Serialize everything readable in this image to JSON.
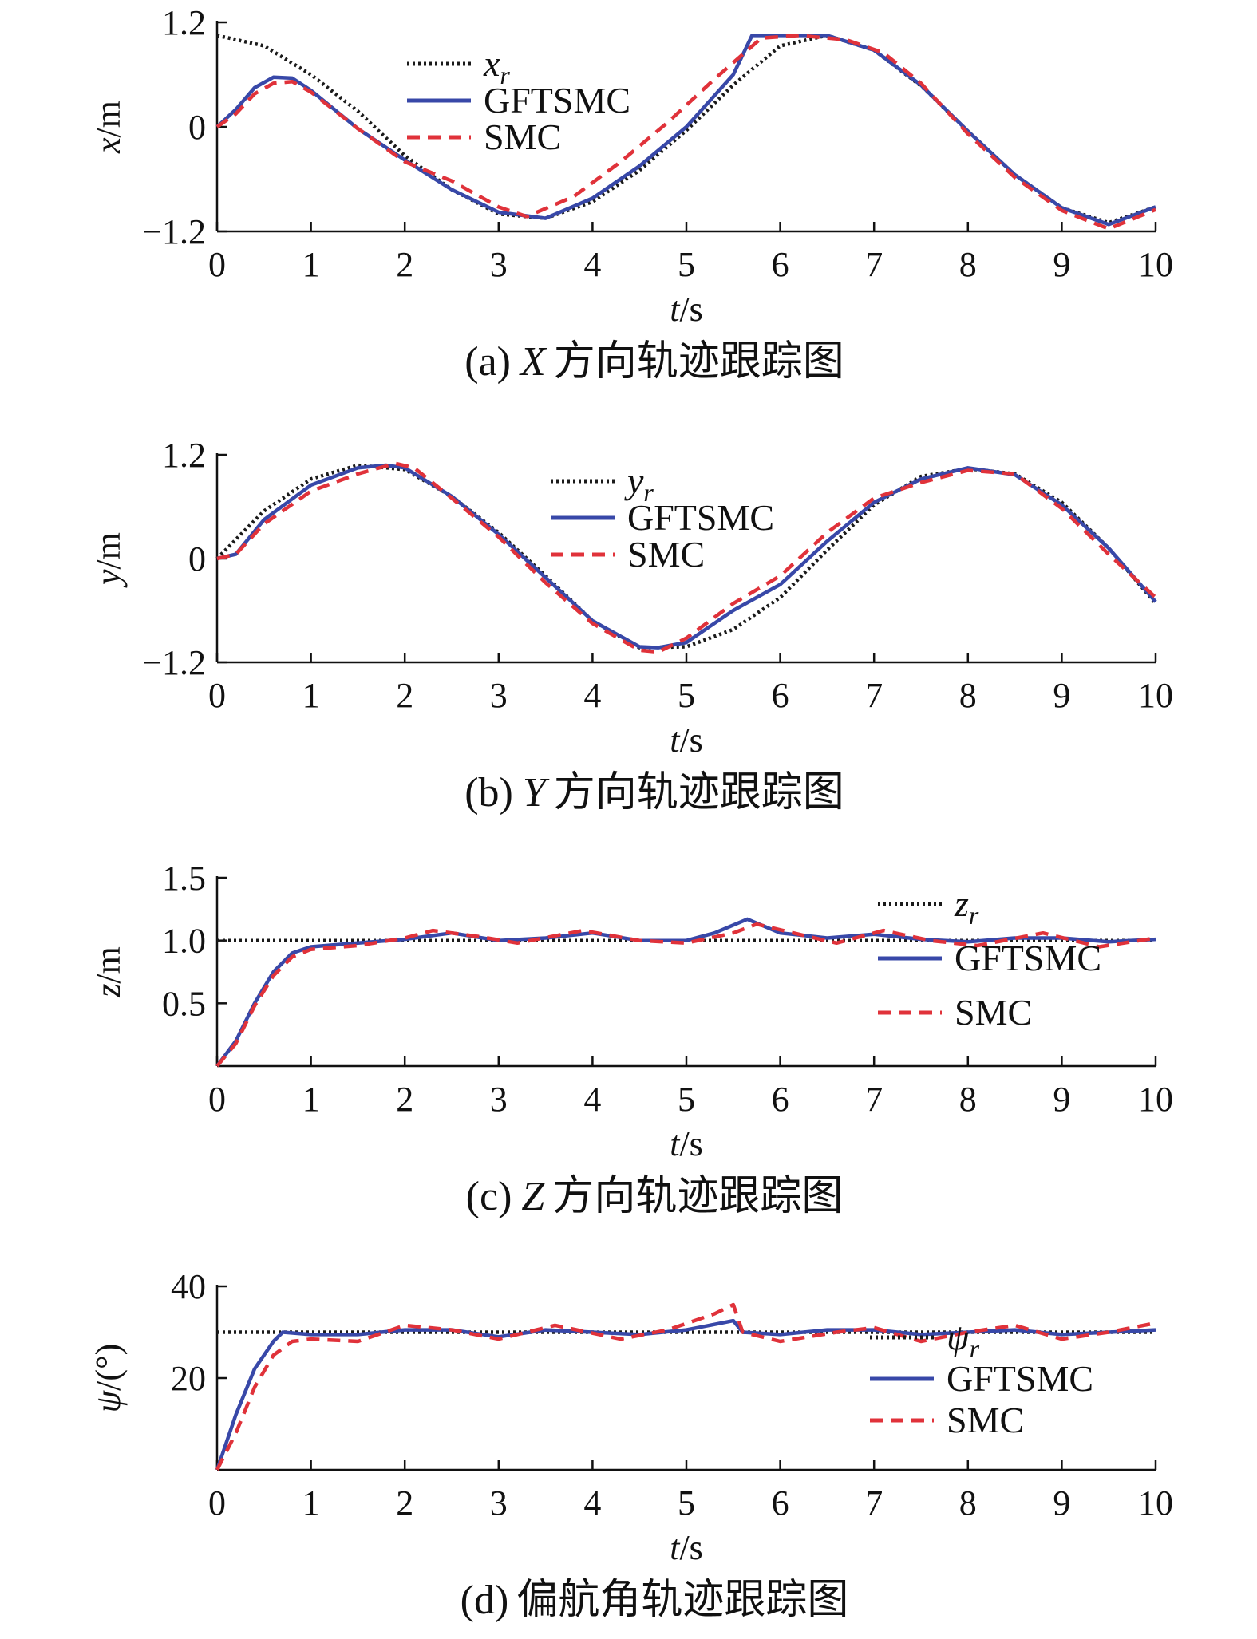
{
  "colors": {
    "reference": "#1a1a1a",
    "gftsmc": "#3848a8",
    "smc": "#e0323a"
  },
  "chart_data": [
    {
      "type": "line",
      "caption": "(a) X 方向轨迹跟踪图",
      "caption_prefix": "(a)",
      "caption_var": "X",
      "caption_text": "方向轨迹跟踪图",
      "xlabel": "t/s",
      "xlabel_var": "t",
      "xlabel_unit": "/s",
      "ylabel": "x/m",
      "ylabel_var": "x",
      "ylabel_unit": "/m",
      "xlim": [
        0,
        10
      ],
      "ylim": [
        -1.2,
        1.2
      ],
      "xticks": [
        0,
        1,
        2,
        3,
        4,
        5,
        6,
        7,
        8,
        9,
        10
      ],
      "xtick_labels": [
        "0",
        "1",
        "2",
        "3",
        "4",
        "5",
        "6",
        "7",
        "8",
        "9",
        "10"
      ],
      "yticks": [
        -1.2,
        0,
        1.2
      ],
      "ytick_labels": [
        "−1.2",
        "0",
        "1.2"
      ],
      "legend": {
        "position": "top-left",
        "entries": [
          {
            "label": "x",
            "subscript": "r",
            "style": "dotted",
            "series": "reference"
          },
          {
            "label": "GFTSMC",
            "subscript": "",
            "style": "solid",
            "series": "gftsmc"
          },
          {
            "label": "SMC",
            "subscript": "",
            "style": "dashed",
            "series": "smc"
          }
        ]
      },
      "series": [
        {
          "name": "x_r",
          "key": "reference",
          "x": [
            0,
            0.5,
            1,
            1.5,
            2,
            2.5,
            3,
            3.5,
            4,
            4.5,
            5,
            5.5,
            6,
            6.5,
            7,
            7.5,
            8,
            8.5,
            9,
            9.5,
            10
          ],
          "y": [
            1.05,
            0.93,
            0.6,
            0.18,
            -0.33,
            -0.72,
            -1.0,
            -1.05,
            -0.86,
            -0.5,
            -0.04,
            0.48,
            0.93,
            1.05,
            0.88,
            0.47,
            -0.05,
            -0.55,
            -0.93,
            -1.1,
            -0.92
          ]
        },
        {
          "name": "GFTSMC",
          "key": "gftsmc",
          "x": [
            0,
            0.2,
            0.4,
            0.6,
            0.8,
            1.0,
            1.5,
            2,
            2.5,
            3,
            3.5,
            4,
            4.5,
            5,
            5.5,
            5.7,
            6.0,
            6.5,
            7,
            7.5,
            8,
            8.5,
            9,
            9.5,
            10
          ],
          "y": [
            0,
            0.2,
            0.45,
            0.57,
            0.56,
            0.42,
            -0.02,
            -0.38,
            -0.72,
            -0.98,
            -1.05,
            -0.82,
            -0.45,
            0.0,
            0.6,
            1.05,
            1.05,
            1.05,
            0.88,
            0.48,
            -0.05,
            -0.55,
            -0.93,
            -1.12,
            -0.92
          ]
        },
        {
          "name": "SMC",
          "key": "smc",
          "x": [
            0,
            0.2,
            0.4,
            0.6,
            0.8,
            1.0,
            1.5,
            2,
            2.5,
            3,
            3.3,
            3.8,
            4.3,
            4.8,
            5.3,
            5.8,
            6.2,
            6.7,
            7.1,
            7.5,
            8,
            8.5,
            9,
            9.5,
            10
          ],
          "y": [
            0,
            0.15,
            0.38,
            0.5,
            0.52,
            0.4,
            -0.02,
            -0.4,
            -0.62,
            -0.92,
            -1.03,
            -0.8,
            -0.4,
            0.05,
            0.55,
            1.02,
            1.05,
            1.0,
            0.85,
            0.5,
            -0.08,
            -0.58,
            -0.96,
            -1.17,
            -0.95
          ]
        }
      ]
    },
    {
      "type": "line",
      "caption": "(b) Y 方向轨迹跟踪图",
      "caption_prefix": "(b)",
      "caption_var": "Y",
      "caption_text": "方向轨迹跟踪图",
      "xlabel": "t/s",
      "xlabel_var": "t",
      "xlabel_unit": "/s",
      "ylabel": "y/m",
      "ylabel_var": "y",
      "ylabel_unit": "/m",
      "xlim": [
        0,
        10
      ],
      "ylim": [
        -1.2,
        1.2
      ],
      "xticks": [
        0,
        1,
        2,
        3,
        4,
        5,
        6,
        7,
        8,
        9,
        10
      ],
      "xtick_labels": [
        "0",
        "1",
        "2",
        "3",
        "4",
        "5",
        "6",
        "7",
        "8",
        "9",
        "10"
      ],
      "yticks": [
        -1.2,
        0,
        1.2
      ],
      "ytick_labels": [
        "−1.2",
        "0",
        "1.2"
      ],
      "legend": {
        "position": "top-center",
        "entries": [
          {
            "label": "y",
            "subscript": "r",
            "style": "dotted",
            "series": "reference"
          },
          {
            "label": "GFTSMC",
            "subscript": "",
            "style": "solid",
            "series": "gftsmc"
          },
          {
            "label": "SMC",
            "subscript": "",
            "style": "dashed",
            "series": "smc"
          }
        ]
      },
      "series": [
        {
          "name": "y_r",
          "key": "reference",
          "x": [
            0,
            0.5,
            1,
            1.5,
            2,
            2.5,
            3,
            3.5,
            4,
            4.5,
            5,
            5.5,
            6,
            6.5,
            7,
            7.5,
            8,
            8.5,
            9,
            9.5,
            10
          ],
          "y": [
            0,
            0.55,
            0.92,
            1.08,
            1.03,
            0.72,
            0.3,
            -0.2,
            -0.72,
            -1.03,
            -1.02,
            -0.82,
            -0.45,
            0.1,
            0.62,
            0.95,
            1.04,
            0.98,
            0.65,
            0.12,
            -0.52
          ]
        },
        {
          "name": "GFTSMC",
          "key": "gftsmc",
          "x": [
            0,
            0.2,
            0.5,
            1,
            1.5,
            1.8,
            2,
            2.5,
            3,
            3.5,
            4,
            4.5,
            4.7,
            5,
            5.5,
            6,
            6.5,
            7,
            7.5,
            8,
            8.5,
            9,
            9.5,
            10
          ],
          "y": [
            0,
            0.05,
            0.45,
            0.85,
            1.05,
            1.08,
            1.05,
            0.72,
            0.28,
            -0.22,
            -0.72,
            -1.02,
            -1.03,
            -0.97,
            -0.6,
            -0.3,
            0.2,
            0.65,
            0.92,
            1.05,
            0.97,
            0.62,
            0.12,
            -0.5
          ]
        },
        {
          "name": "SMC",
          "key": "smc",
          "x": [
            0,
            0.2,
            0.5,
            1,
            1.5,
            1.9,
            2.1,
            2.5,
            3,
            3.5,
            4,
            4.5,
            4.7,
            5,
            5.5,
            6,
            6.5,
            7,
            7.5,
            8,
            8.5,
            9,
            9.5,
            10
          ],
          "y": [
            0,
            0.05,
            0.4,
            0.78,
            0.98,
            1.1,
            1.05,
            0.7,
            0.25,
            -0.28,
            -0.75,
            -1.06,
            -1.08,
            -0.92,
            -0.52,
            -0.2,
            0.3,
            0.7,
            0.88,
            1.02,
            0.98,
            0.58,
            0.05,
            -0.45
          ]
        }
      ]
    },
    {
      "type": "line",
      "caption": "(c) Z 方向轨迹跟踪图",
      "caption_prefix": "(c)",
      "caption_var": "Z",
      "caption_text": "方向轨迹跟踪图",
      "xlabel": "t/s",
      "xlabel_var": "t",
      "xlabel_unit": "/s",
      "ylabel": "z/m",
      "ylabel_var": "z",
      "ylabel_unit": "/m",
      "xlim": [
        0,
        10
      ],
      "ylim": [
        0,
        1.5
      ],
      "xticks": [
        0,
        1,
        2,
        3,
        4,
        5,
        6,
        7,
        8,
        9,
        10
      ],
      "xtick_labels": [
        "0",
        "1",
        "2",
        "3",
        "4",
        "5",
        "6",
        "7",
        "8",
        "9",
        "10"
      ],
      "yticks": [
        0.5,
        1.0,
        1.5
      ],
      "ytick_labels": [
        "0.5",
        "1.0",
        "1.5"
      ],
      "legend": {
        "position": "right",
        "entries": [
          {
            "label": "z",
            "subscript": "r",
            "style": "dotted",
            "series": "reference"
          },
          {
            "label": "GFTSMC",
            "subscript": "",
            "style": "solid",
            "series": "gftsmc"
          },
          {
            "label": "SMC",
            "subscript": "",
            "style": "dashed",
            "series": "smc"
          }
        ]
      },
      "series": [
        {
          "name": "z_r",
          "key": "reference",
          "x": [
            0,
            10
          ],
          "y": [
            1.0,
            1.0
          ]
        },
        {
          "name": "GFTSMC",
          "key": "gftsmc",
          "x": [
            0,
            0.2,
            0.4,
            0.6,
            0.8,
            1.0,
            1.5,
            2,
            2.5,
            3,
            3.5,
            4,
            4.5,
            5,
            5.3,
            5.65,
            6.0,
            6.5,
            7,
            7.5,
            8,
            8.5,
            9,
            9.5,
            10
          ],
          "y": [
            0,
            0.2,
            0.5,
            0.75,
            0.9,
            0.95,
            0.98,
            1.01,
            1.06,
            1.0,
            1.02,
            1.06,
            1.0,
            1.0,
            1.06,
            1.17,
            1.06,
            1.02,
            1.05,
            1.01,
            0.99,
            1.02,
            1.02,
            0.99,
            1.01
          ]
        },
        {
          "name": "SMC",
          "key": "smc",
          "x": [
            0,
            0.2,
            0.4,
            0.6,
            0.8,
            1.0,
            1.5,
            2,
            2.3,
            2.8,
            3.2,
            3.9,
            4.5,
            5,
            5.5,
            5.75,
            6.2,
            6.6,
            7.1,
            7.6,
            8.1,
            8.8,
            9.4,
            10
          ],
          "y": [
            0,
            0.18,
            0.48,
            0.72,
            0.87,
            0.93,
            0.96,
            1.02,
            1.08,
            1.03,
            0.98,
            1.08,
            1.0,
            0.98,
            1.06,
            1.13,
            1.05,
            0.98,
            1.08,
            1.0,
            0.96,
            1.06,
            0.95,
            1.02
          ]
        }
      ]
    },
    {
      "type": "line",
      "caption": "(d) 偏航角轨迹跟踪图",
      "caption_prefix": "(d)",
      "caption_var": "",
      "caption_text": "偏航角轨迹跟踪图",
      "xlabel": "t/s",
      "xlabel_var": "t",
      "xlabel_unit": "/s",
      "ylabel": "ψ/(°)",
      "ylabel_var": "ψ",
      "ylabel_unit": "/(°)",
      "xlim": [
        0,
        10
      ],
      "ylim": [
        0,
        40
      ],
      "xticks": [
        0,
        1,
        2,
        3,
        4,
        5,
        6,
        7,
        8,
        9,
        10
      ],
      "xtick_labels": [
        "0",
        "1",
        "2",
        "3",
        "4",
        "5",
        "6",
        "7",
        "8",
        "9",
        "10"
      ],
      "yticks": [
        20,
        40
      ],
      "ytick_labels": [
        "20",
        "40"
      ],
      "legend": {
        "position": "right",
        "entries": [
          {
            "label": "ψ",
            "subscript": "r",
            "style": "dotted",
            "series": "reference"
          },
          {
            "label": "GFTSMC",
            "subscript": "",
            "style": "solid",
            "series": "gftsmc"
          },
          {
            "label": "SMC",
            "subscript": "",
            "style": "dashed",
            "series": "smc"
          }
        ]
      },
      "series": [
        {
          "name": "ψ_r",
          "key": "reference",
          "x": [
            0,
            10
          ],
          "y": [
            30,
            30
          ]
        },
        {
          "name": "GFTSMC",
          "key": "gftsmc",
          "x": [
            0,
            0.2,
            0.4,
            0.6,
            0.7,
            1.0,
            1.5,
            2.0,
            2.5,
            3.0,
            3.5,
            4.0,
            4.5,
            5.0,
            5.5,
            5.6,
            6.0,
            6.5,
            7.0,
            7.5,
            8.0,
            8.5,
            9.0,
            9.5,
            10
          ],
          "y": [
            0,
            12,
            22,
            28,
            30,
            29.5,
            29.5,
            30.5,
            30.5,
            29,
            30.5,
            30,
            29.5,
            30.5,
            32.5,
            30,
            29.5,
            30.5,
            30.5,
            29.5,
            30,
            30.5,
            29.5,
            30,
            30.5
          ]
        },
        {
          "name": "SMC",
          "key": "smc",
          "x": [
            0,
            0.2,
            0.4,
            0.6,
            0.8,
            1.0,
            1.5,
            2.0,
            2.5,
            3.0,
            3.6,
            4.3,
            4.8,
            5.3,
            5.5,
            5.6,
            6.0,
            6.6,
            7.0,
            7.5,
            8.0,
            8.5,
            9.0,
            9.5,
            10
          ],
          "y": [
            0,
            8,
            18,
            25,
            28,
            28.5,
            28,
            31.5,
            30.5,
            28.5,
            31.5,
            28.5,
            30.5,
            34,
            36,
            30,
            28,
            30,
            31,
            28,
            30,
            31.5,
            28.5,
            30,
            32
          ]
        }
      ]
    }
  ]
}
